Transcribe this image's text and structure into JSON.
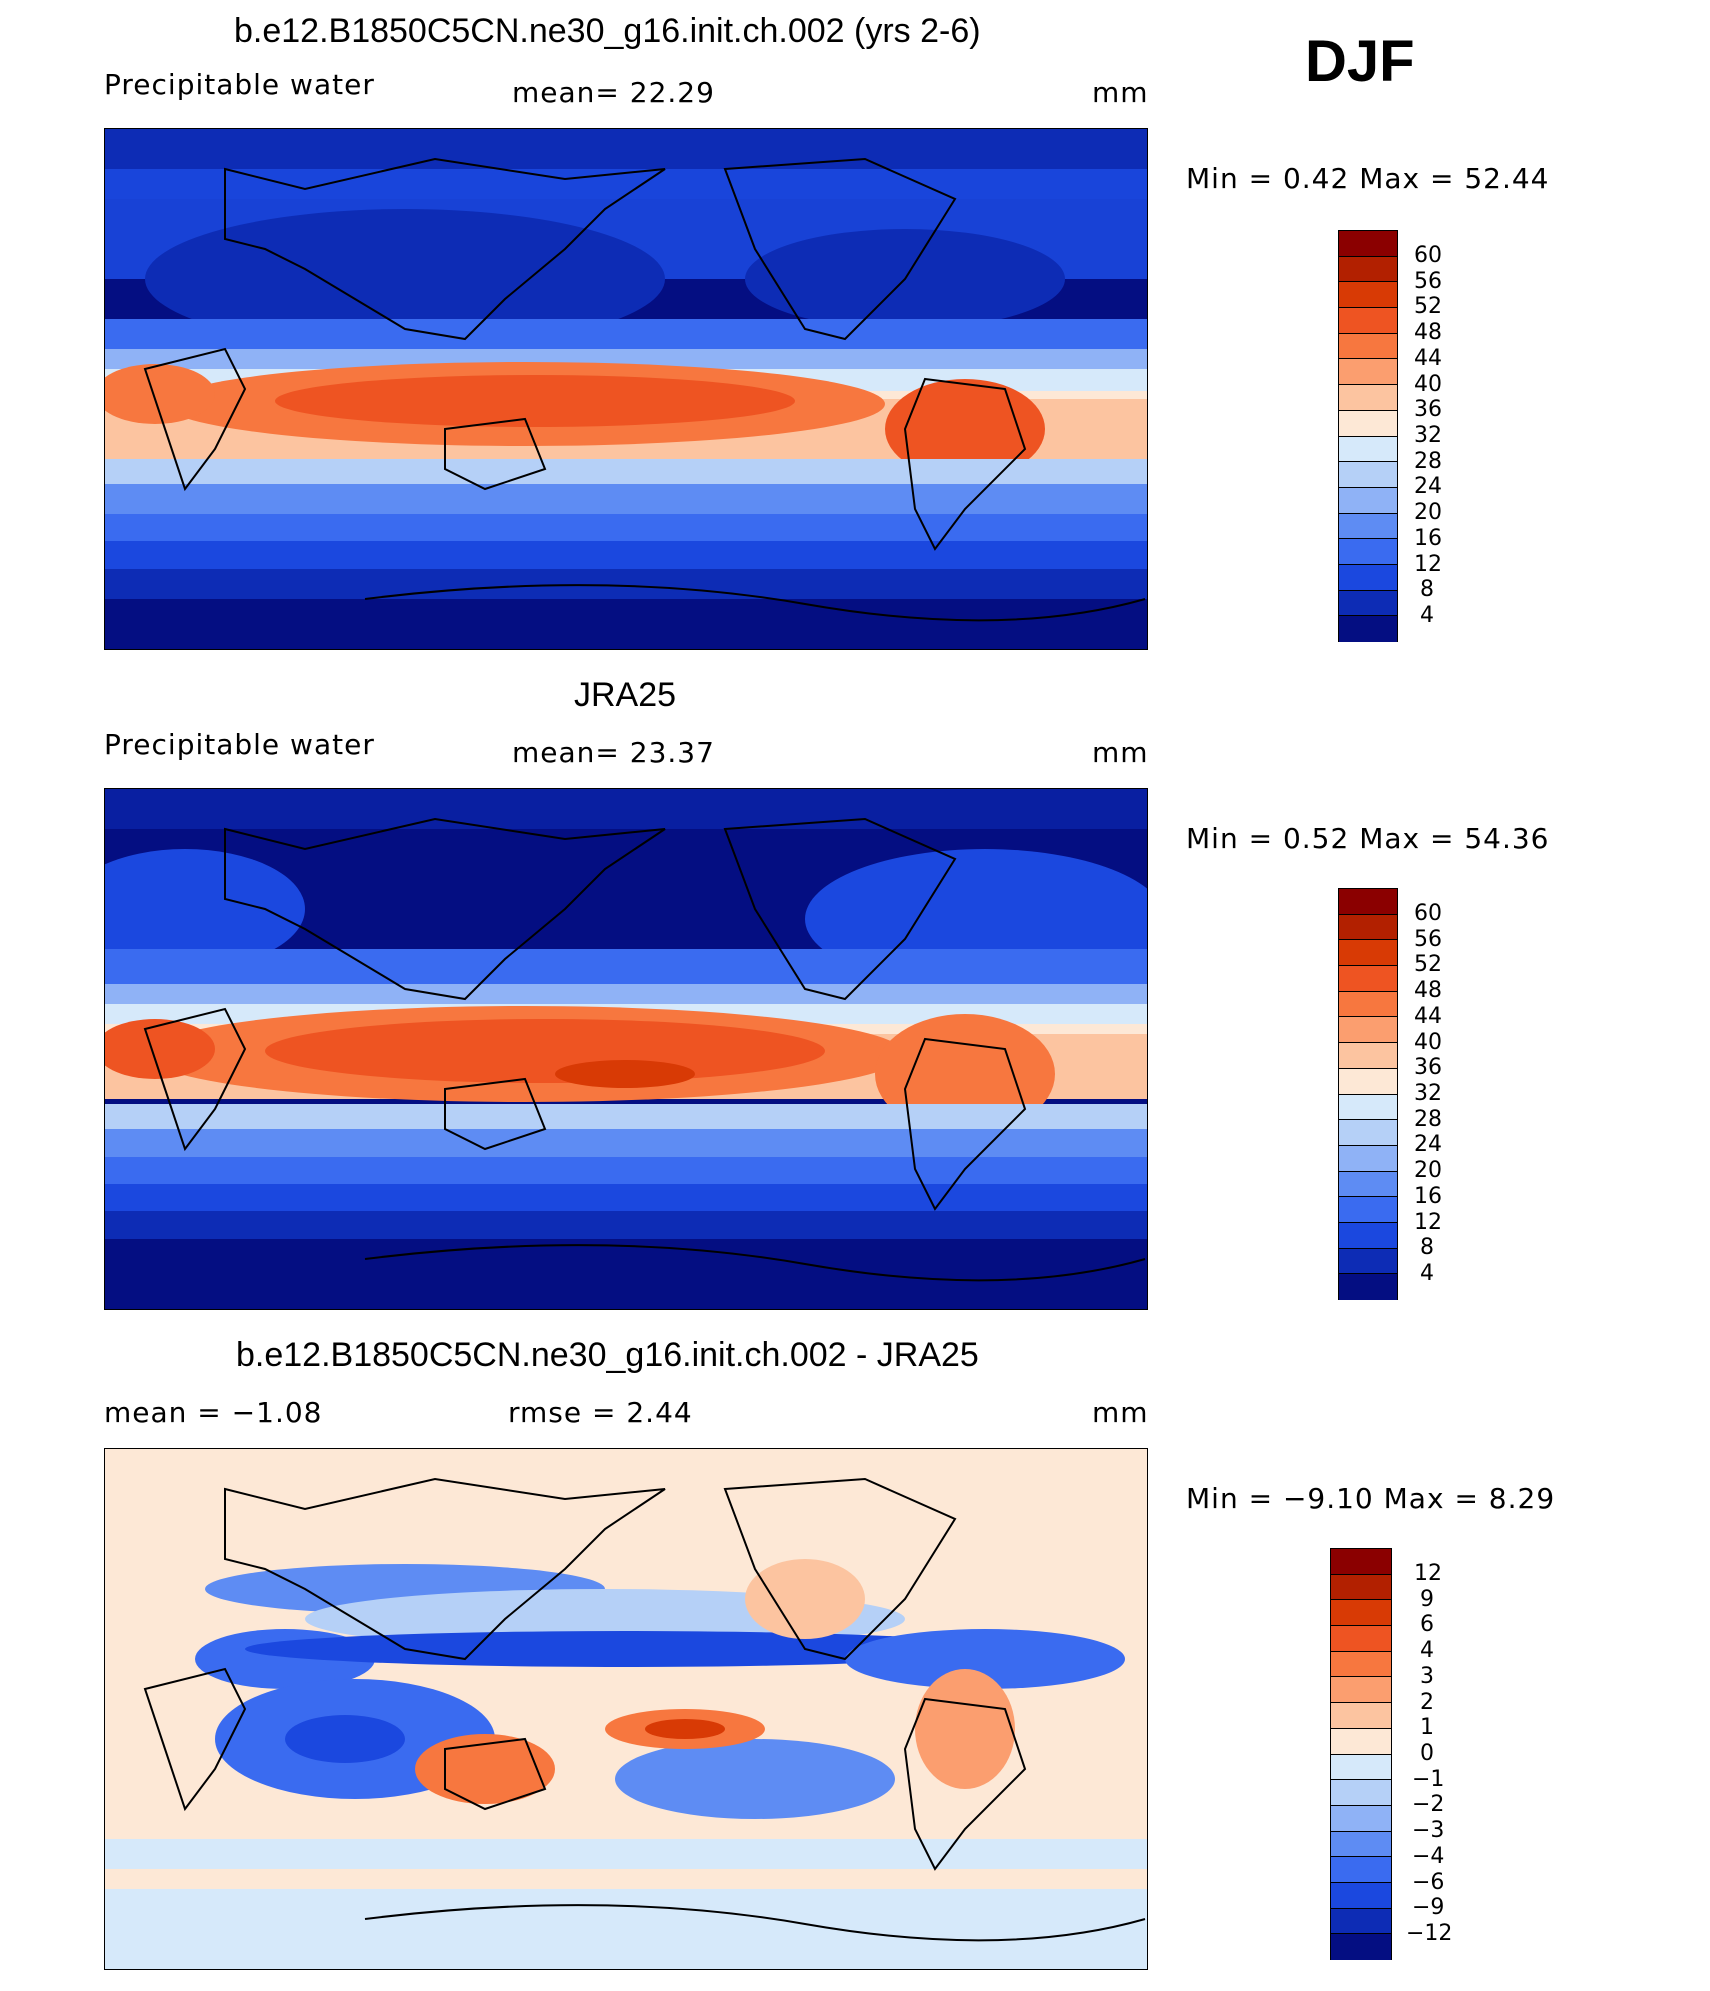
{
  "season": "DJF",
  "palette_precip": [
    "#8b0000",
    "#b22000",
    "#d83a05",
    "#ee5422",
    "#f7773f",
    "#fb9e6f",
    "#fcc4a0",
    "#fde8d6",
    "#d6e9fa",
    "#b5d0f7",
    "#8fb2f6",
    "#5e8cf3",
    "#3a6bf0",
    "#1b48df",
    "#0d2cb5",
    "#040e82"
  ],
  "palette_diff": [
    "#8b0000",
    "#b22000",
    "#d83a05",
    "#ee5422",
    "#f7773f",
    "#fb9e6f",
    "#fcc4a0",
    "#fde8d6",
    "#d6e9fa",
    "#b5d0f7",
    "#8fb2f6",
    "#5e8cf3",
    "#3a6bf0",
    "#1b48df",
    "#0d2cb5",
    "#040e82"
  ],
  "panels": [
    {
      "title": "b.e12.B1850C5CN.ne30_g16.init.ch.002 (yrs 2-6)",
      "left_label": "Precipitable  water",
      "center_label": "mean=   22.29",
      "units": "mm",
      "minmax": "Min  =      0.42  Max  =     52.44",
      "levels": [
        "60",
        "56",
        "52",
        "48",
        "44",
        "40",
        "36",
        "32",
        "28",
        "24",
        "20",
        "16",
        "12",
        "8",
        "4"
      ]
    },
    {
      "title": "JRA25",
      "left_label": "Precipitable  water",
      "center_label": "mean=   23.37",
      "units": "mm",
      "minmax": "Min  =      0.52  Max  =     54.36",
      "levels": [
        "60",
        "56",
        "52",
        "48",
        "44",
        "40",
        "36",
        "32",
        "28",
        "24",
        "20",
        "16",
        "12",
        "8",
        "4"
      ]
    },
    {
      "title": "b.e12.B1850C5CN.ne30_g16.init.ch.002 - JRA25",
      "left_label": "mean  =    −1.08",
      "center_label": "rmse  =     2.44",
      "units": "mm",
      "minmax": "Min  =    −9.10  Max  =      8.29",
      "levels": [
        "12",
        "9",
        "6",
        "4",
        "3",
        "2",
        "1",
        "0",
        "−1",
        "−2",
        "−3",
        "−4",
        "−6",
        "−9",
        "−12"
      ]
    }
  ]
}
